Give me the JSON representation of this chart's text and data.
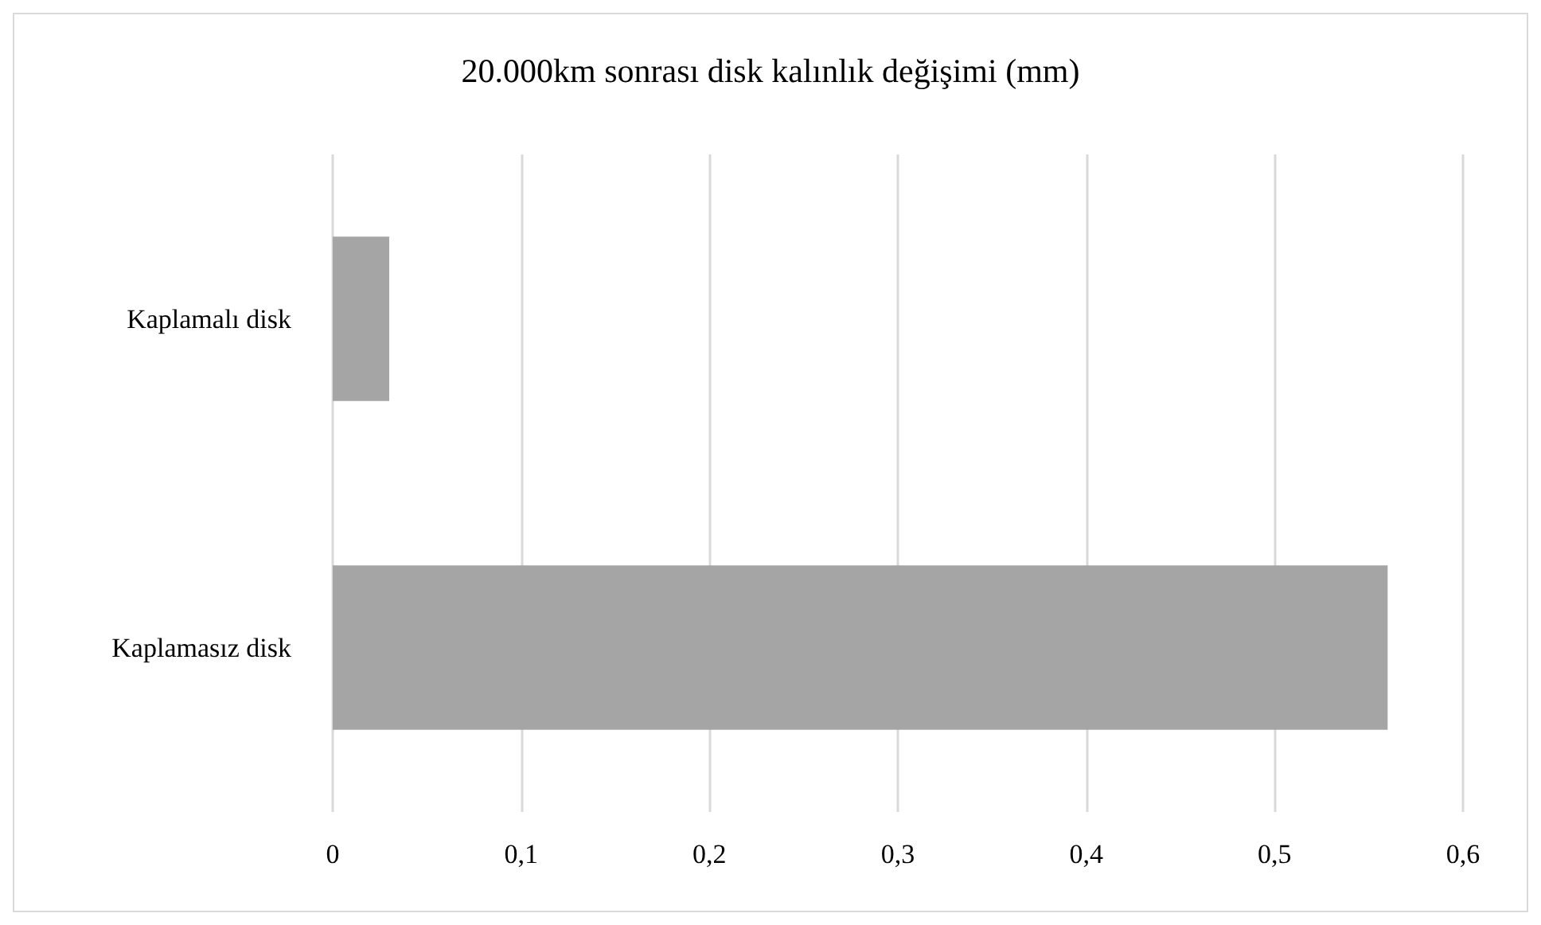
{
  "chart_data": {
    "type": "bar",
    "orientation": "horizontal",
    "title": "20.000km sonrası disk kalınlık değişimi (mm)",
    "categories": [
      "Kaplamalı disk",
      "Kaplamasız disk"
    ],
    "values": [
      0.03,
      0.56
    ],
    "color": "#a5a5a5",
    "xlim": [
      0,
      0.6
    ],
    "xticks": [
      0,
      {
        "value": 0.1,
        "label": "0,1"
      },
      {
        "value": 0.2,
        "label": "0,2"
      },
      {
        "value": 0.3,
        "label": "0,3"
      },
      {
        "value": 0.4,
        "label": "0,4"
      },
      {
        "value": 0.5,
        "label": "0,5"
      },
      {
        "value": 0.6,
        "label": "0,6"
      }
    ],
    "grid": "x"
  }
}
